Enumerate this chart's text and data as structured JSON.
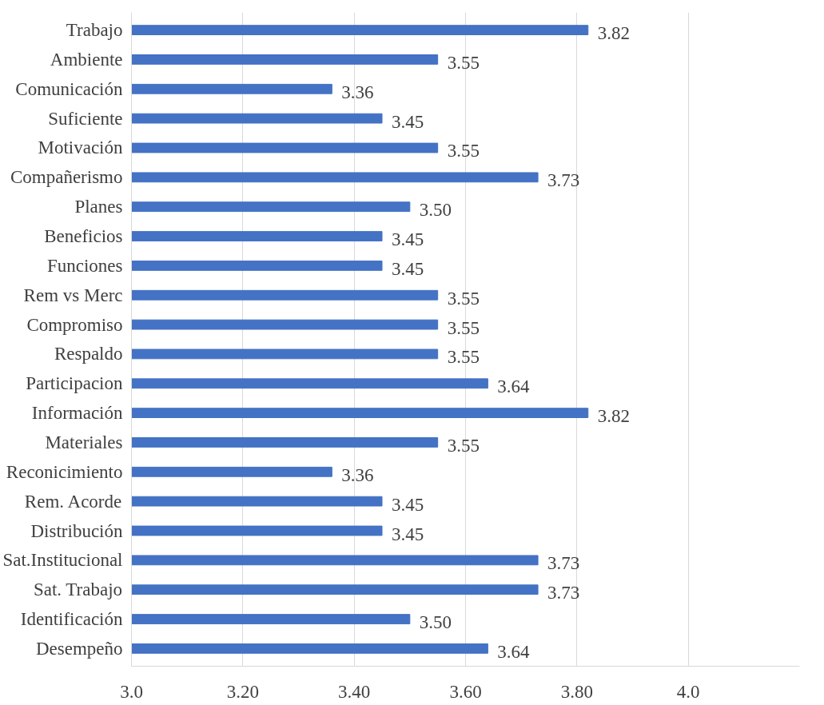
{
  "chart_data": {
    "type": "bar",
    "orientation": "horizontal",
    "categories": [
      "Trabajo",
      "Ambiente",
      "Comunicación",
      "Suficiente",
      "Motivación",
      "Compañerismo",
      "Planes",
      "Beneficios",
      "Funciones",
      "Rem vs Merc",
      "Compromiso",
      "Respaldo",
      "Participacion",
      "Información",
      "Materiales",
      "Reconicimiento",
      "Rem. Acorde",
      "Distribución",
      "Sat.Institucional",
      "Sat. Trabajo",
      "Identificación",
      "Desempeño"
    ],
    "values": [
      3.82,
      3.55,
      3.36,
      3.45,
      3.55,
      3.73,
      3.5,
      3.45,
      3.45,
      3.55,
      3.55,
      3.55,
      3.64,
      3.82,
      3.55,
      3.36,
      3.45,
      3.45,
      3.73,
      3.73,
      3.5,
      3.64
    ],
    "value_labels": [
      "3.82",
      "3.55",
      "3.36",
      "3.45",
      "3.55",
      "3.73",
      "3.50",
      "3.45",
      "3.45",
      "3.55",
      "3.55",
      "3.55",
      "3.64",
      "3.82",
      "3.55",
      "3.36",
      "3.45",
      "3.45",
      "3.73",
      "3.73",
      "3.50",
      "3.64"
    ],
    "color": "#4472c4",
    "xlim": [
      3.0,
      4.2
    ],
    "xticks": [
      {
        "value": 3.0,
        "label": "3.0"
      },
      {
        "value": 3.2,
        "label": "3.20"
      },
      {
        "value": 3.4,
        "label": "3.40"
      },
      {
        "value": 3.6,
        "label": "3.60"
      },
      {
        "value": 3.8,
        "label": "3.80"
      },
      {
        "value": 4.0,
        "label": "4.0"
      }
    ],
    "grid": "x"
  }
}
